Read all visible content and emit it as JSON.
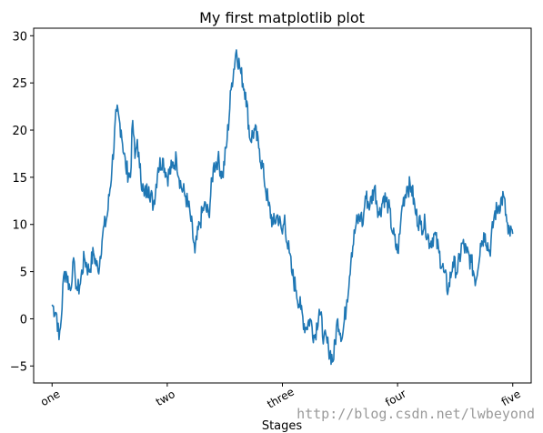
{
  "chart_data": {
    "type": "line",
    "title": "My first matplotlib plot",
    "xlabel": "Stages",
    "ylabel": "",
    "xlim": [
      -40,
      1040
    ],
    "ylim": [
      -6.8,
      30.8
    ],
    "xticks": [
      {
        "value": 0,
        "label": "one"
      },
      {
        "value": 250,
        "label": "two"
      },
      {
        "value": 500,
        "label": "three"
      },
      {
        "value": 750,
        "label": "four"
      },
      {
        "value": 1000,
        "label": "five"
      }
    ],
    "yticks": [
      -5,
      0,
      5,
      10,
      15,
      20,
      25,
      30
    ],
    "grid": false,
    "series": [
      {
        "color": "#1f77b4",
        "x": [
          0,
          10,
          15,
          20,
          25,
          30,
          40,
          45,
          50,
          55,
          60,
          70,
          80,
          90,
          100,
          110,
          120,
          130,
          140,
          150,
          160,
          170,
          175,
          180,
          185,
          190,
          200,
          210,
          220,
          230,
          240,
          250,
          260,
          270,
          280,
          290,
          300,
          310,
          320,
          330,
          340,
          350,
          360,
          370,
          380,
          390,
          400,
          410,
          420,
          430,
          440,
          450,
          460,
          470,
          480,
          490,
          500,
          505,
          510,
          515,
          520,
          530,
          540,
          550,
          560,
          570,
          580,
          590,
          600,
          610,
          620,
          630,
          640,
          650,
          660,
          670,
          675,
          680,
          690,
          700,
          710,
          720,
          730,
          740,
          750,
          755,
          760,
          770,
          780,
          790,
          800,
          810,
          820,
          830,
          840,
          850,
          860,
          870,
          880,
          890,
          900,
          910,
          920,
          930,
          940,
          950,
          960,
          970,
          980,
          990,
          1000
        ],
        "y": [
          1.5,
          0.5,
          -2.2,
          0,
          4.5,
          5,
          3,
          6,
          4.5,
          3,
          3.5,
          6.5,
          5,
          7,
          5,
          9,
          11,
          16,
          22,
          20,
          16,
          15,
          21,
          17,
          19,
          16,
          13,
          14,
          12,
          16,
          17,
          15,
          16,
          17,
          14,
          13,
          11,
          7,
          10,
          12,
          11,
          16,
          17,
          15,
          19,
          25,
          28.5,
          26,
          24,
          19,
          20,
          18,
          15,
          12,
          10,
          11,
          9,
          11,
          8,
          7,
          5,
          3,
          1,
          -1,
          0,
          -2,
          1,
          -2,
          -3,
          -4.5,
          0,
          -2,
          2,
          7,
          10,
          11,
          10,
          13,
          12,
          14,
          11,
          13,
          12,
          9,
          7,
          9,
          12,
          14,
          14,
          11,
          10,
          10,
          8,
          9,
          7,
          5,
          3,
          6,
          5,
          8,
          7,
          6,
          4,
          8,
          9,
          7,
          11,
          12,
          13,
          9,
          9
        ]
      }
    ],
    "watermark": "http://blog.csdn.net/lwbeyond"
  }
}
